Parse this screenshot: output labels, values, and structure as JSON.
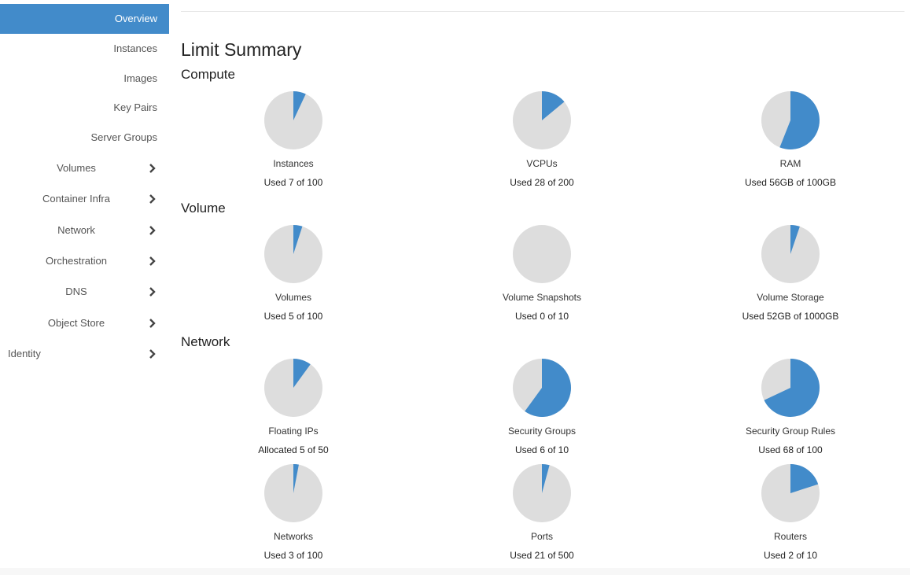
{
  "sidebar": {
    "items": [
      {
        "label": "Overview",
        "type": "simple",
        "active": true
      },
      {
        "label": "Instances",
        "type": "simple"
      },
      {
        "label": "Images",
        "type": "simple"
      },
      {
        "label": "Key Pairs",
        "type": "simple"
      },
      {
        "label": "Server Groups",
        "type": "simple"
      },
      {
        "label": "Volumes",
        "type": "group"
      },
      {
        "label": "Container Infra",
        "type": "group"
      },
      {
        "label": "Network",
        "type": "group"
      },
      {
        "label": "Orchestration",
        "type": "group"
      },
      {
        "label": "DNS",
        "type": "group"
      },
      {
        "label": "Object Store",
        "type": "group"
      },
      {
        "label": "Identity",
        "type": "group",
        "left": true
      }
    ]
  },
  "main": {
    "title": "Limit Summary",
    "sections": [
      {
        "heading": "Compute",
        "quotas": [
          {
            "label": "Instances",
            "used_text": "Used 7 of 100",
            "used": 7,
            "total": 100
          },
          {
            "label": "VCPUs",
            "used_text": "Used 28 of 200",
            "used": 28,
            "total": 200
          },
          {
            "label": "RAM",
            "used_text": "Used 56GB of 100GB",
            "used": 56,
            "total": 100
          }
        ]
      },
      {
        "heading": "Volume",
        "quotas": [
          {
            "label": "Volumes",
            "used_text": "Used 5 of 100",
            "used": 5,
            "total": 100
          },
          {
            "label": "Volume Snapshots",
            "used_text": "Used 0 of 10",
            "used": 0,
            "total": 10
          },
          {
            "label": "Volume Storage",
            "used_text": "Used 52GB of 1000GB",
            "used": 52,
            "total": 1000
          }
        ]
      },
      {
        "heading": "Network",
        "quotas": [
          {
            "label": "Floating IPs",
            "used_text": "Allocated 5 of 50",
            "used": 5,
            "total": 50
          },
          {
            "label": "Security Groups",
            "used_text": "Used 6 of 10",
            "used": 6,
            "total": 10
          },
          {
            "label": "Security Group Rules",
            "used_text": "Used 68 of 100",
            "used": 68,
            "total": 100
          },
          {
            "label": "Networks",
            "used_text": "Used 3 of 100",
            "used": 3,
            "total": 100
          },
          {
            "label": "Ports",
            "used_text": "Used 21 of 500",
            "used": 21,
            "total": 500
          },
          {
            "label": "Routers",
            "used_text": "Used 2 of 10",
            "used": 2,
            "total": 10
          }
        ]
      }
    ]
  },
  "colors": {
    "accent": "#428bca",
    "pie_used": "#428bca",
    "pie_free": "#dddddd"
  },
  "icons": {
    "group_chevron": "chevron-right-icon"
  }
}
